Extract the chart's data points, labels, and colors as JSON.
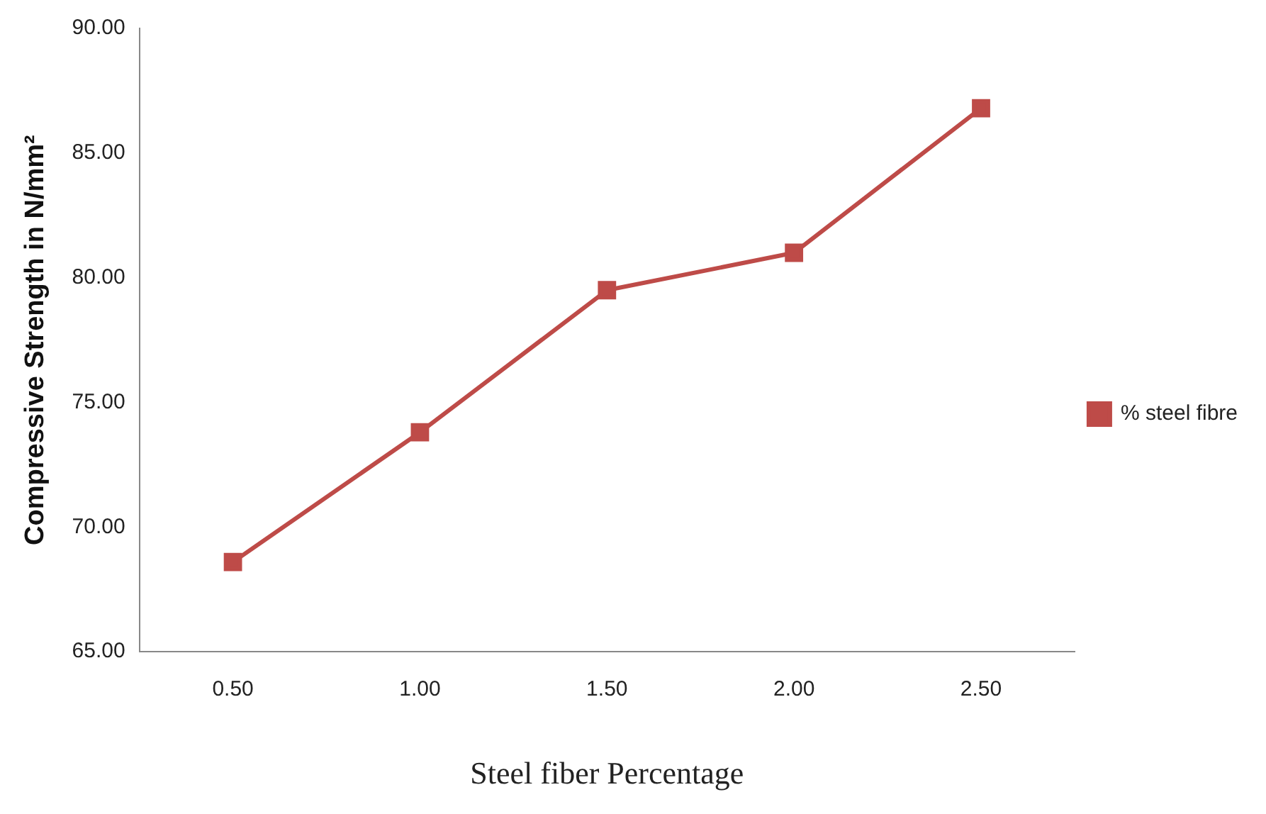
{
  "chart_data": {
    "type": "line",
    "xlabel": "Steel fiber Percentage",
    "ylabel": "Compressive Strength in N/mm²",
    "categories": [
      "0.50",
      "1.00",
      "1.50",
      "2.00",
      "2.50"
    ],
    "series": [
      {
        "name": "% steel fibre",
        "color": "#be4b48",
        "values": [
          68.6,
          73.8,
          79.5,
          81.0,
          86.8
        ]
      }
    ],
    "ylim": [
      65,
      90
    ],
    "yticks": [
      {
        "value": 65,
        "label": "65.00"
      },
      {
        "value": 70,
        "label": "70.00"
      },
      {
        "value": 75,
        "label": "75.00"
      },
      {
        "value": 80,
        "label": "80.00"
      },
      {
        "value": 85,
        "label": "85.00"
      },
      {
        "value": 90,
        "label": "90.00"
      }
    ],
    "grid": false,
    "legend": "right",
    "marker": "square",
    "line_style": "solid"
  }
}
